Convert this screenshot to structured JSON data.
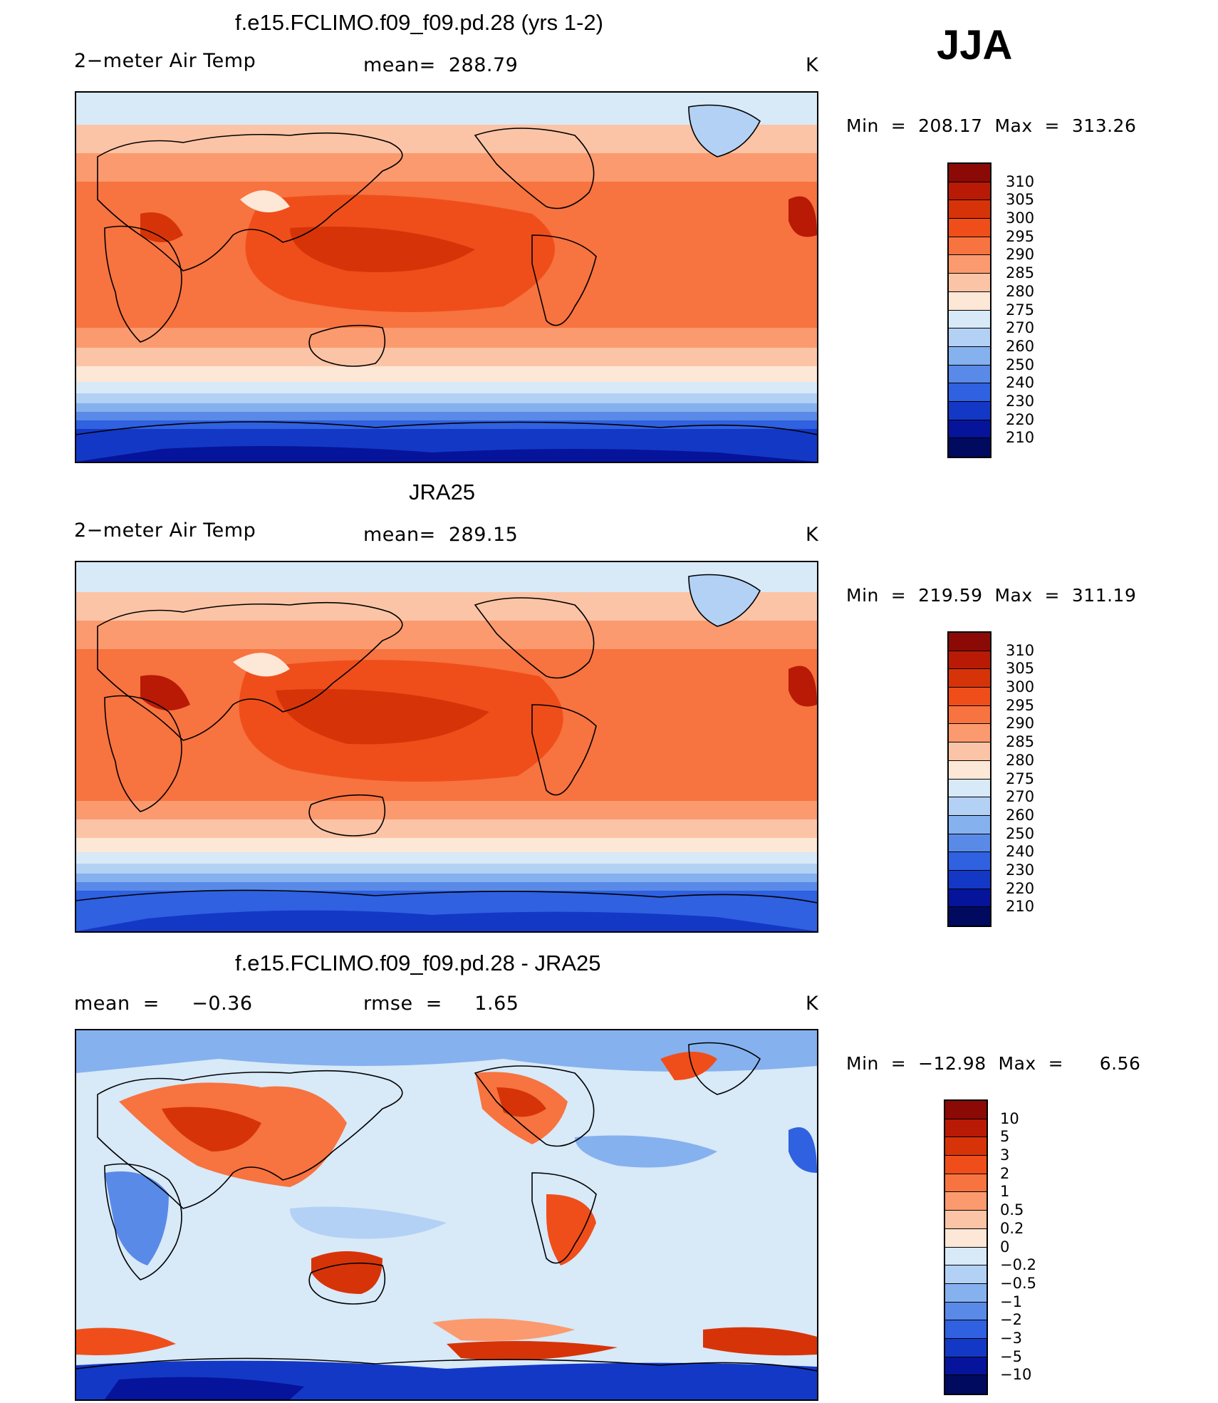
{
  "season": "JJA",
  "panels": [
    {
      "title": "f.e15.FCLIMO.f09_f09.pd.28 (yrs 1-2)",
      "left_label": "2−meter Air Temp",
      "center_label": "mean=  288.79",
      "units": "K",
      "min_max": "Min  =  208.17  Max  =  313.26",
      "colorbar": {
        "labels": [
          "310",
          "305",
          "300",
          "295",
          "290",
          "285",
          "280",
          "275",
          "270",
          "260",
          "250",
          "240",
          "230",
          "220",
          "210"
        ],
        "colors": [
          "#8b0a05",
          "#b81a06",
          "#d63408",
          "#ef4e1a",
          "#f7733f",
          "#fb9a6e",
          "#fcc4a6",
          "#fde7d6",
          "#d8e9f8",
          "#b3d1f4",
          "#86b1ef",
          "#5a8ae8",
          "#2f61e0",
          "#1438c6",
          "#05149a",
          "#000a5e"
        ]
      }
    },
    {
      "title": "JRA25",
      "left_label": "2−meter Air Temp",
      "center_label": "mean=  289.15",
      "units": "K",
      "min_max": "Min  =  219.59  Max  =  311.19",
      "colorbar": {
        "labels": [
          "310",
          "305",
          "300",
          "295",
          "290",
          "285",
          "280",
          "275",
          "270",
          "260",
          "250",
          "240",
          "230",
          "220",
          "210"
        ],
        "colors": [
          "#8b0a05",
          "#b81a06",
          "#d63408",
          "#ef4e1a",
          "#f7733f",
          "#fb9a6e",
          "#fcc4a6",
          "#fde7d6",
          "#d8e9f8",
          "#b3d1f4",
          "#86b1ef",
          "#5a8ae8",
          "#2f61e0",
          "#1438c6",
          "#05149a",
          "#000a5e"
        ]
      }
    },
    {
      "title": "f.e15.FCLIMO.f09_f09.pd.28 - JRA25",
      "left_label": "mean  =     −0.36",
      "center_label": "rmse  =     1.65",
      "units": "K",
      "min_max": "Min  =  −12.98  Max  =      6.56",
      "colorbar": {
        "labels": [
          "10",
          "5",
          "3",
          "2",
          "1",
          "0.5",
          "0.2",
          "0",
          "−0.2",
          "−0.5",
          "−1",
          "−2",
          "−3",
          "−5",
          "−10"
        ],
        "colors": [
          "#8b0a05",
          "#b81a06",
          "#d63408",
          "#ef4e1a",
          "#f7733f",
          "#fb9a6e",
          "#fcc4a6",
          "#fde7d6",
          "#d8e9f8",
          "#b3d1f4",
          "#86b1ef",
          "#5a8ae8",
          "#2f61e0",
          "#1438c6",
          "#05149a",
          "#000a5e"
        ]
      }
    }
  ]
}
